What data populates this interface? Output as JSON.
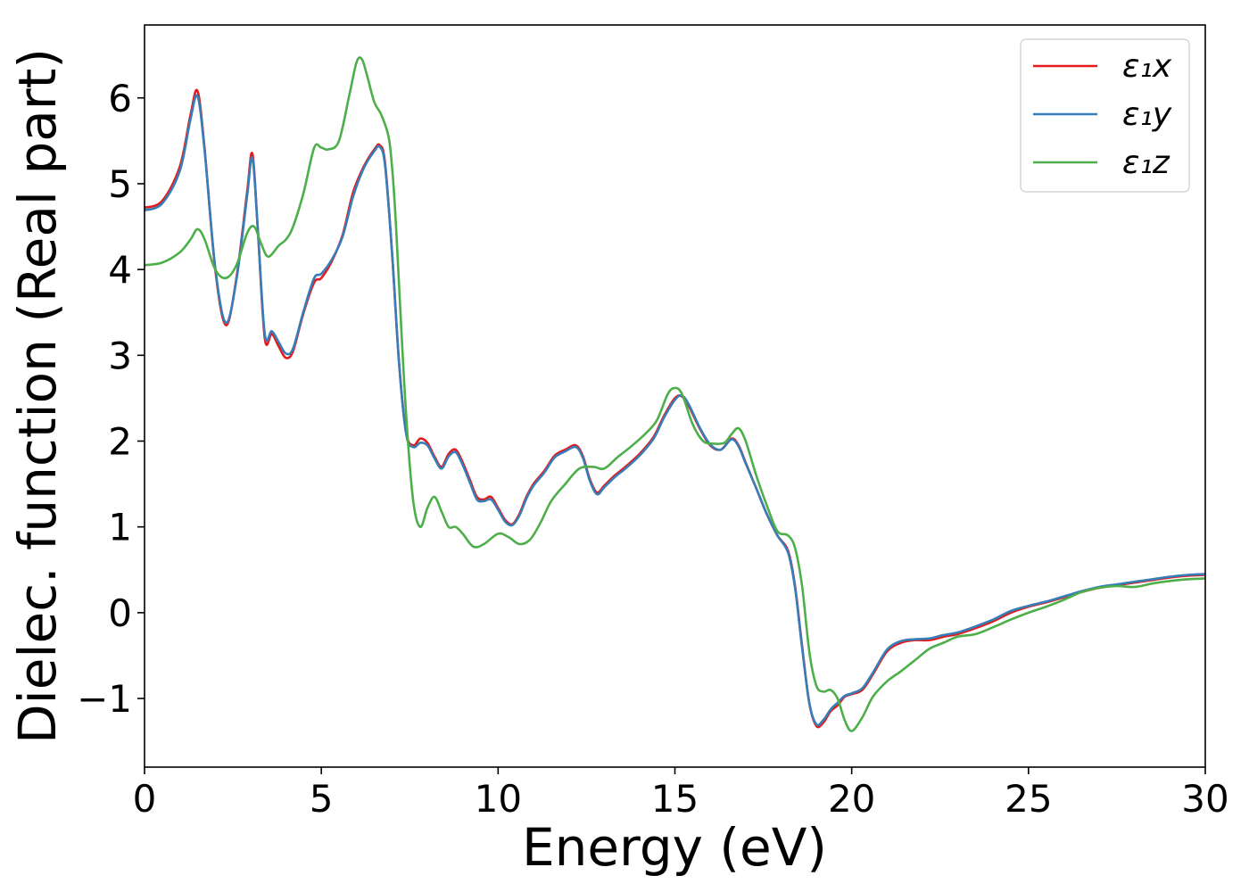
{
  "chart_data": {
    "type": "line",
    "title": "",
    "xlabel": "Energy (eV)",
    "ylabel": "Dielec. function (Real part)",
    "xlim": [
      0,
      30
    ],
    "ylim": [
      -1.8,
      6.85
    ],
    "xticks": [
      0,
      5,
      10,
      15,
      20,
      25,
      30
    ],
    "xtick_labels": [
      "0",
      "5",
      "10",
      "15",
      "20",
      "25",
      "30"
    ],
    "yticks": [
      -1,
      0,
      1,
      2,
      3,
      4,
      5,
      6
    ],
    "ytick_labels": [
      "−1",
      "0",
      "1",
      "2",
      "3",
      "4",
      "5",
      "6"
    ],
    "grid": false,
    "legend_position": "top-right",
    "series": [
      {
        "name": "x",
        "legend_label": "ε₁x",
        "color": "#e41a1c",
        "x": [
          0,
          0.5,
          1.0,
          1.3,
          1.5,
          1.7,
          2.0,
          2.3,
          2.6,
          2.9,
          3.05,
          3.2,
          3.4,
          3.6,
          3.8,
          4.0,
          4.2,
          4.5,
          4.8,
          5.0,
          5.3,
          5.6,
          5.9,
          6.2,
          6.5,
          6.65,
          6.8,
          7.0,
          7.2,
          7.4,
          7.6,
          7.8,
          8.0,
          8.2,
          8.4,
          8.6,
          8.8,
          9.0,
          9.2,
          9.4,
          9.6,
          9.8,
          10.0,
          10.2,
          10.4,
          10.6,
          10.8,
          11.0,
          11.3,
          11.6,
          11.9,
          12.2,
          12.4,
          12.6,
          12.8,
          13.0,
          13.3,
          13.6,
          14.0,
          14.4,
          14.7,
          15.0,
          15.2,
          15.4,
          15.7,
          16.0,
          16.3,
          16.6,
          16.8,
          17.0,
          17.3,
          17.6,
          17.9,
          18.2,
          18.4,
          18.6,
          18.8,
          19.0,
          19.2,
          19.4,
          19.6,
          19.8,
          20.0,
          20.3,
          20.6,
          21.0,
          21.4,
          21.8,
          22.2,
          22.6,
          23.0,
          23.5,
          24.0,
          24.5,
          25.0,
          25.5,
          26.0,
          26.5,
          27.0,
          27.5,
          28.0,
          28.5,
          29.0,
          29.5,
          30.0
        ],
        "y": [
          4.72,
          4.8,
          5.2,
          5.8,
          6.08,
          5.4,
          4.0,
          3.35,
          3.9,
          4.9,
          5.35,
          4.5,
          3.2,
          3.25,
          3.1,
          2.97,
          3.05,
          3.5,
          3.85,
          3.9,
          4.1,
          4.4,
          4.9,
          5.2,
          5.4,
          5.45,
          5.25,
          4.2,
          2.9,
          2.1,
          1.95,
          2.03,
          1.98,
          1.82,
          1.7,
          1.85,
          1.9,
          1.75,
          1.55,
          1.35,
          1.32,
          1.35,
          1.22,
          1.08,
          1.03,
          1.15,
          1.35,
          1.5,
          1.65,
          1.83,
          1.9,
          1.95,
          1.82,
          1.55,
          1.4,
          1.48,
          1.6,
          1.7,
          1.85,
          2.05,
          2.3,
          2.5,
          2.52,
          2.4,
          2.15,
          1.95,
          1.9,
          2.03,
          1.95,
          1.75,
          1.45,
          1.15,
          0.9,
          0.72,
          0.3,
          -0.4,
          -1.05,
          -1.32,
          -1.28,
          -1.15,
          -1.08,
          -0.98,
          -0.95,
          -0.9,
          -0.72,
          -0.45,
          -0.35,
          -0.32,
          -0.32,
          -0.28,
          -0.25,
          -0.18,
          -0.1,
          0.0,
          0.07,
          0.12,
          0.18,
          0.24,
          0.29,
          0.32,
          0.35,
          0.38,
          0.41,
          0.43,
          0.44
        ]
      },
      {
        "name": "y",
        "legend_label": "ε₁y",
        "color": "#377eb8",
        "x": [
          0,
          0.5,
          1.0,
          1.3,
          1.5,
          1.7,
          2.0,
          2.3,
          2.6,
          2.9,
          3.05,
          3.2,
          3.4,
          3.6,
          3.8,
          4.0,
          4.2,
          4.5,
          4.8,
          5.0,
          5.3,
          5.6,
          5.9,
          6.2,
          6.5,
          6.65,
          6.8,
          7.0,
          7.2,
          7.4,
          7.6,
          7.8,
          8.0,
          8.2,
          8.4,
          8.6,
          8.8,
          9.0,
          9.2,
          9.4,
          9.6,
          9.8,
          10.0,
          10.2,
          10.4,
          10.6,
          10.8,
          11.0,
          11.3,
          11.6,
          11.9,
          12.2,
          12.4,
          12.6,
          12.8,
          13.0,
          13.3,
          13.6,
          14.0,
          14.4,
          14.7,
          15.0,
          15.2,
          15.4,
          15.7,
          16.0,
          16.3,
          16.6,
          16.8,
          17.0,
          17.3,
          17.6,
          17.9,
          18.2,
          18.4,
          18.6,
          18.8,
          19.0,
          19.2,
          19.4,
          19.6,
          19.8,
          20.0,
          20.3,
          20.6,
          21.0,
          21.4,
          21.8,
          22.2,
          22.6,
          23.0,
          23.5,
          24.0,
          24.5,
          25.0,
          25.5,
          26.0,
          26.5,
          27.0,
          27.5,
          28.0,
          28.5,
          29.0,
          29.5,
          30.0
        ],
        "y": [
          4.69,
          4.77,
          5.15,
          5.75,
          6.02,
          5.38,
          4.02,
          3.38,
          3.88,
          4.85,
          5.3,
          4.5,
          3.25,
          3.28,
          3.15,
          3.02,
          3.08,
          3.52,
          3.9,
          3.95,
          4.12,
          4.38,
          4.85,
          5.18,
          5.38,
          5.43,
          5.22,
          4.2,
          2.9,
          2.08,
          1.93,
          1.98,
          1.95,
          1.8,
          1.68,
          1.82,
          1.87,
          1.72,
          1.52,
          1.32,
          1.3,
          1.32,
          1.2,
          1.06,
          1.02,
          1.13,
          1.33,
          1.48,
          1.63,
          1.81,
          1.88,
          1.93,
          1.8,
          1.53,
          1.38,
          1.46,
          1.58,
          1.68,
          1.83,
          2.03,
          2.28,
          2.48,
          2.53,
          2.42,
          2.16,
          1.96,
          1.9,
          2.02,
          1.94,
          1.74,
          1.45,
          1.15,
          0.9,
          0.7,
          0.28,
          -0.42,
          -1.05,
          -1.3,
          -1.25,
          -1.13,
          -1.05,
          -0.97,
          -0.94,
          -0.88,
          -0.7,
          -0.43,
          -0.33,
          -0.31,
          -0.3,
          -0.26,
          -0.23,
          -0.16,
          -0.08,
          0.02,
          0.08,
          0.13,
          0.19,
          0.25,
          0.3,
          0.33,
          0.36,
          0.39,
          0.42,
          0.44,
          0.45
        ]
      },
      {
        "name": "z",
        "legend_label": "ε₁z",
        "color": "#4daf4a",
        "x": [
          0,
          0.5,
          1.0,
          1.3,
          1.5,
          1.7,
          2.0,
          2.3,
          2.6,
          2.9,
          3.1,
          3.3,
          3.5,
          3.8,
          4.0,
          4.2,
          4.5,
          4.8,
          5.0,
          5.2,
          5.5,
          5.8,
          6.0,
          6.15,
          6.3,
          6.5,
          6.7,
          6.9,
          7.0,
          7.1,
          7.2,
          7.4,
          7.6,
          7.8,
          8.0,
          8.2,
          8.4,
          8.6,
          8.8,
          9.0,
          9.3,
          9.6,
          10.0,
          10.3,
          10.6,
          10.9,
          11.2,
          11.5,
          11.9,
          12.3,
          12.7,
          13.0,
          13.4,
          13.8,
          14.2,
          14.5,
          14.8,
          15.0,
          15.2,
          15.5,
          15.8,
          16.1,
          16.4,
          16.6,
          16.8,
          17.0,
          17.3,
          17.6,
          17.9,
          18.2,
          18.4,
          18.6,
          18.8,
          19.0,
          19.2,
          19.4,
          19.6,
          19.8,
          20.0,
          20.3,
          20.6,
          21.0,
          21.4,
          21.8,
          22.2,
          22.6,
          23.0,
          23.5,
          24.0,
          24.5,
          25.0,
          25.5,
          26.0,
          26.5,
          27.0,
          27.5,
          28.0,
          28.5,
          29.0,
          29.5,
          30.0
        ],
        "y": [
          4.05,
          4.08,
          4.2,
          4.35,
          4.47,
          4.35,
          4.0,
          3.9,
          4.05,
          4.42,
          4.5,
          4.3,
          4.15,
          4.28,
          4.35,
          4.5,
          4.9,
          5.42,
          5.42,
          5.4,
          5.5,
          6.05,
          6.42,
          6.45,
          6.25,
          5.95,
          5.8,
          5.55,
          5.2,
          4.6,
          3.8,
          2.3,
          1.3,
          1.0,
          1.22,
          1.35,
          1.18,
          1.0,
          1.0,
          0.92,
          0.77,
          0.8,
          0.92,
          0.88,
          0.8,
          0.85,
          1.05,
          1.3,
          1.5,
          1.68,
          1.7,
          1.68,
          1.82,
          1.95,
          2.1,
          2.25,
          2.55,
          2.62,
          2.55,
          2.2,
          2.0,
          1.97,
          1.98,
          2.08,
          2.15,
          2.0,
          1.6,
          1.25,
          0.95,
          0.9,
          0.75,
          0.3,
          -0.45,
          -0.85,
          -0.92,
          -0.9,
          -1.0,
          -1.25,
          -1.38,
          -1.22,
          -0.98,
          -0.8,
          -0.68,
          -0.55,
          -0.42,
          -0.35,
          -0.28,
          -0.25,
          -0.17,
          -0.08,
          0.0,
          0.07,
          0.15,
          0.24,
          0.29,
          0.31,
          0.3,
          0.34,
          0.37,
          0.39,
          0.4
        ]
      }
    ]
  }
}
